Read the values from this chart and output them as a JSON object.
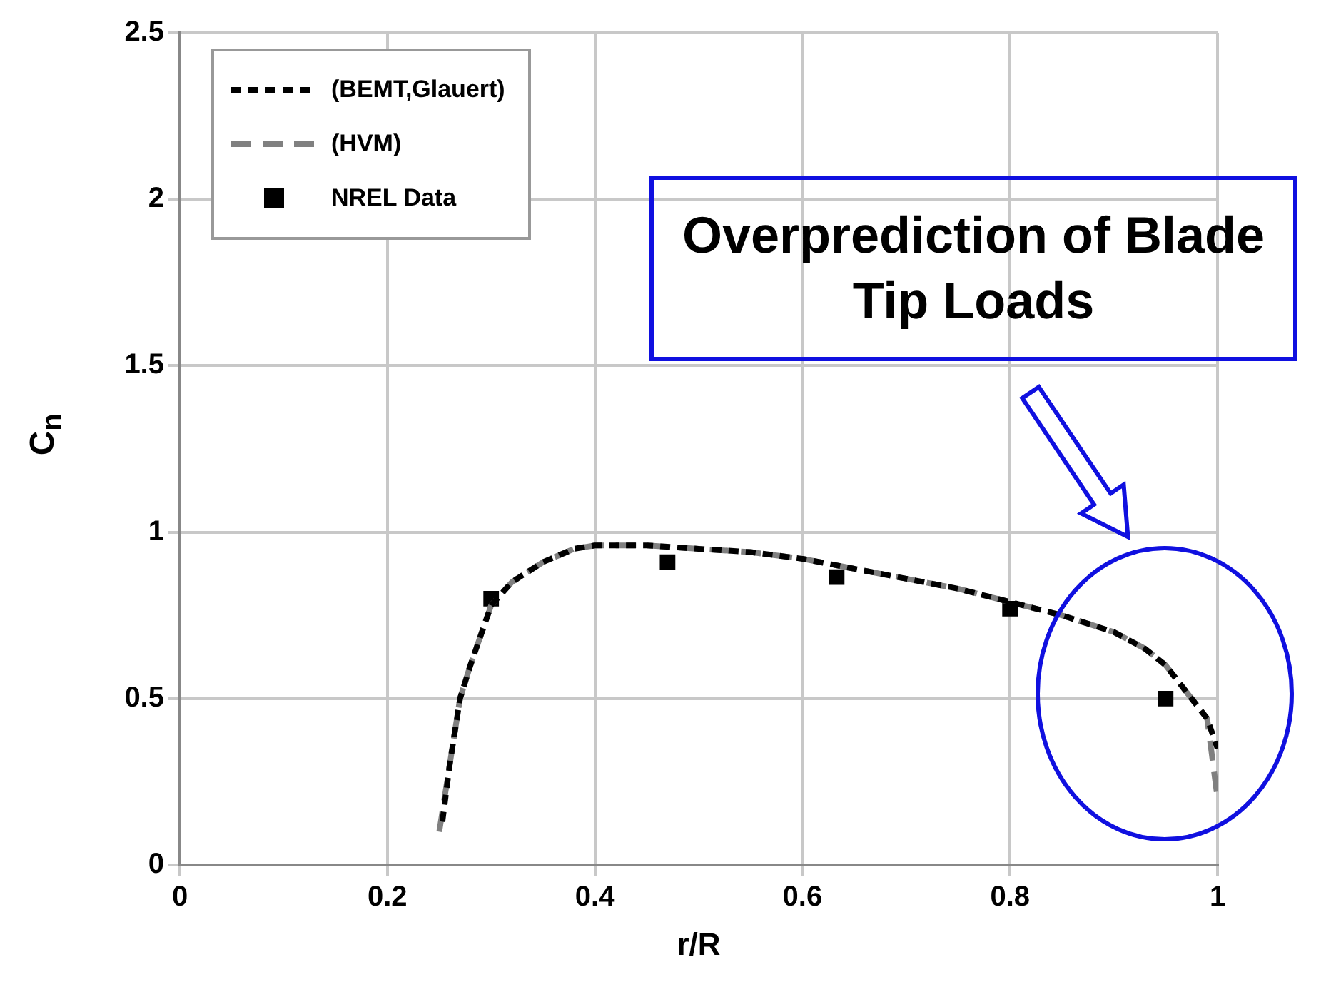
{
  "chart_data": {
    "type": "line",
    "xlabel": "r/R",
    "ylabel": "C$_{n}$",
    "xlim": [
      0,
      1
    ],
    "xticks": [
      0,
      0.2,
      0.4,
      0.6,
      0.8,
      1
    ],
    "ylim": [
      0,
      2.5
    ],
    "yticks": [
      0,
      0.5,
      1,
      1.5,
      2,
      2.5
    ],
    "grid": true,
    "legend": "top left",
    "line_style": "dashed",
    "series": [
      {
        "name": "(BEMT,Glauert)",
        "color": "#000000",
        "marker": "none",
        "x": [
          0.253,
          0.26,
          0.27,
          0.28,
          0.3,
          0.32,
          0.35,
          0.38,
          0.4,
          0.45,
          0.5,
          0.55,
          0.6,
          0.65,
          0.7,
          0.75,
          0.8,
          0.85,
          0.9,
          0.93,
          0.95,
          0.97,
          0.99,
          1.0
        ],
        "values": [
          0.13,
          0.3,
          0.5,
          0.6,
          0.78,
          0.85,
          0.91,
          0.95,
          0.96,
          0.96,
          0.95,
          0.94,
          0.92,
          0.89,
          0.86,
          0.83,
          0.79,
          0.75,
          0.7,
          0.65,
          0.6,
          0.52,
          0.44,
          0.35
        ]
      },
      {
        "name": "(HVM)",
        "color": "#808080",
        "marker": "none",
        "x": [
          0.25,
          0.26,
          0.27,
          0.28,
          0.3,
          0.32,
          0.35,
          0.38,
          0.4,
          0.45,
          0.5,
          0.55,
          0.6,
          0.65,
          0.7,
          0.75,
          0.8,
          0.85,
          0.9,
          0.93,
          0.95,
          0.97,
          0.99,
          1.0
        ],
        "values": [
          0.1,
          0.3,
          0.5,
          0.6,
          0.78,
          0.85,
          0.91,
          0.95,
          0.96,
          0.96,
          0.95,
          0.94,
          0.92,
          0.89,
          0.86,
          0.83,
          0.79,
          0.75,
          0.7,
          0.65,
          0.6,
          0.52,
          0.44,
          0.2
        ]
      },
      {
        "name": "NREL Data",
        "type": "scatter",
        "color": "#000000",
        "marker": "square",
        "x": [
          0.3,
          0.47,
          0.633,
          0.8,
          0.95
        ],
        "values": [
          0.8,
          0.91,
          0.865,
          0.77,
          0.5
        ]
      }
    ],
    "annotations": [
      "Overprediction of Blade Tip Loads"
    ]
  }
}
